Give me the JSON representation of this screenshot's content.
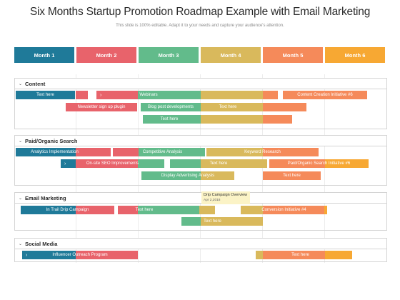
{
  "header": {
    "title": "Six Months Startup Promotion Roadmap Example with Email Marketing",
    "subtitle": "This slide is 100% editable. Adapt it to your needs and capture your audience's attention."
  },
  "colors": {
    "blue": "#1f7a99",
    "red": "#e8636b",
    "green": "#62bb8b",
    "yellow": "#d9b95c",
    "orange": "#f58a5a",
    "amber": "#f7a833"
  },
  "months": [
    "Month 1",
    "Month 2",
    "Month 3",
    "Month 4",
    "Month 5",
    "Month 6"
  ],
  "sections": {
    "content": {
      "label": "Content",
      "rows": [
        [
          "Text here",
          "Webinars",
          "Content Creation Initiative #6"
        ],
        [
          "Newsletter sign up plugin",
          "Blog post developments",
          "Text here"
        ],
        [
          "Text here"
        ]
      ]
    },
    "paid": {
      "label": "Paid/Organic Search",
      "rows": [
        [
          "Analytics Implementation",
          "Competitive Analysis",
          "Keyword Research"
        ],
        [
          "On-site SEO Improvements",
          "Text here",
          "Paid/Organic Search Initiative #6"
        ],
        [
          "Display Advertising Analysis",
          "Text here"
        ]
      ]
    },
    "email": {
      "label": "Email Marketing",
      "rows": [
        [
          "In Trail Drip Campaign",
          "Text here",
          "Conversion Initiative #4"
        ],
        [
          "Text here"
        ]
      ]
    },
    "social": {
      "label": "Social Media",
      "rows": [
        [
          "Influencer Outreach Program",
          "Text here"
        ]
      ]
    }
  },
  "callout": {
    "title": "Drip Campaign Overview",
    "date": "Apr 2,2018"
  }
}
